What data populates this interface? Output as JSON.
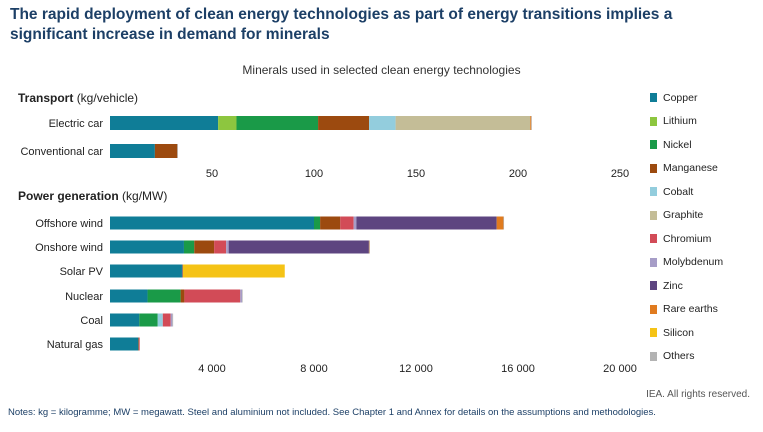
{
  "title": "The rapid deployment of clean energy technologies as part of energy transitions implies a significant increase in demand for minerals",
  "subtitle": "Minerals used in selected clean energy technologies",
  "credit": "IEA. All rights reserved.",
  "notes": "Notes: kg = kilogramme; MW = megawatt. Steel and aluminium not included. See Chapter 1 and Annex for details on the assumptions and methodologies.",
  "minerals": [
    {
      "name": "Copper",
      "color": "#0f7d97"
    },
    {
      "name": "Lithium",
      "color": "#8dc63f"
    },
    {
      "name": "Nickel",
      "color": "#1a9a48"
    },
    {
      "name": "Manganese",
      "color": "#9c4a0f"
    },
    {
      "name": "Cobalt",
      "color": "#93cddd"
    },
    {
      "name": "Graphite",
      "color": "#c4bd97"
    },
    {
      "name": "Chromium",
      "color": "#d24b57"
    },
    {
      "name": "Molybdenum",
      "color": "#a69dc7"
    },
    {
      "name": "Zinc",
      "color": "#5d4580"
    },
    {
      "name": "Rare earths",
      "color": "#e07b1f"
    },
    {
      "name": "Silicon",
      "color": "#f5c316"
    },
    {
      "name": "Others",
      "color": "#b3b3b3"
    }
  ],
  "chart_data": [
    {
      "type": "bar",
      "orientation": "horizontal",
      "stacked": true,
      "title": "Transport",
      "unit": "(kg/vehicle)",
      "xlim": [
        0,
        250
      ],
      "xticks": [
        50,
        100,
        150,
        200,
        250
      ],
      "xtick_labels": [
        "50",
        "100",
        "150",
        "200",
        "250"
      ],
      "categories": [
        "Electric car",
        "Conventional car"
      ],
      "series": [
        {
          "name": "Copper",
          "values": [
            53,
            22
          ]
        },
        {
          "name": "Lithium",
          "values": [
            9,
            0
          ]
        },
        {
          "name": "Nickel",
          "values": [
            40,
            0
          ]
        },
        {
          "name": "Manganese",
          "values": [
            25,
            11
          ]
        },
        {
          "name": "Cobalt",
          "values": [
            13,
            0
          ]
        },
        {
          "name": "Graphite",
          "values": [
            66,
            0
          ]
        },
        {
          "name": "Chromium",
          "values": [
            0,
            0
          ]
        },
        {
          "name": "Molybdenum",
          "values": [
            0,
            0
          ]
        },
        {
          "name": "Zinc",
          "values": [
            0,
            0
          ]
        },
        {
          "name": "Rare earths",
          "values": [
            0.5,
            0
          ]
        },
        {
          "name": "Silicon",
          "values": [
            0,
            0
          ]
        },
        {
          "name": "Others",
          "values": [
            0.3,
            0.3
          ]
        }
      ]
    },
    {
      "type": "bar",
      "orientation": "horizontal",
      "stacked": true,
      "title": "Power generation",
      "unit": "(kg/MW)",
      "xlim": [
        0,
        20000
      ],
      "xticks": [
        4000,
        8000,
        12000,
        16000,
        20000
      ],
      "xtick_labels": [
        "4 000",
        "8 000",
        "12 000",
        "16 000",
        "20 000"
      ],
      "categories": [
        "Offshore wind",
        "Onshore wind",
        "Solar PV",
        "Nuclear",
        "Coal",
        "Natural gas"
      ],
      "series": [
        {
          "name": "Copper",
          "values": [
            8000,
            2900,
            2822,
            1473,
            1150,
            1100
          ]
        },
        {
          "name": "Lithium",
          "values": [
            0,
            0,
            0,
            0,
            0,
            0
          ]
        },
        {
          "name": "Nickel",
          "values": [
            240,
            404,
            1,
            1297,
            721,
            16
          ]
        },
        {
          "name": "Manganese",
          "values": [
            790,
            780,
            0,
            148,
            0,
            0
          ]
        },
        {
          "name": "Cobalt",
          "values": [
            0,
            0,
            0,
            0,
            200,
            0
          ]
        },
        {
          "name": "Graphite",
          "values": [
            0,
            0,
            0,
            0,
            0,
            0
          ]
        },
        {
          "name": "Chromium",
          "values": [
            525,
            470,
            0,
            2190,
            308,
            48
          ]
        },
        {
          "name": "Molybdenum",
          "values": [
            109,
            99,
            0,
            70,
            66,
            0
          ]
        },
        {
          "name": "Zinc",
          "values": [
            5500,
            5500,
            30,
            0,
            0,
            0
          ]
        },
        {
          "name": "Rare earths",
          "values": [
            265,
            14,
            0,
            0,
            0,
            0
          ]
        },
        {
          "name": "Silicon",
          "values": [
            0,
            0,
            4000,
            0,
            0,
            0
          ]
        },
        {
          "name": "Others",
          "values": [
            5,
            5,
            0,
            20,
            30,
            0
          ]
        }
      ]
    }
  ]
}
